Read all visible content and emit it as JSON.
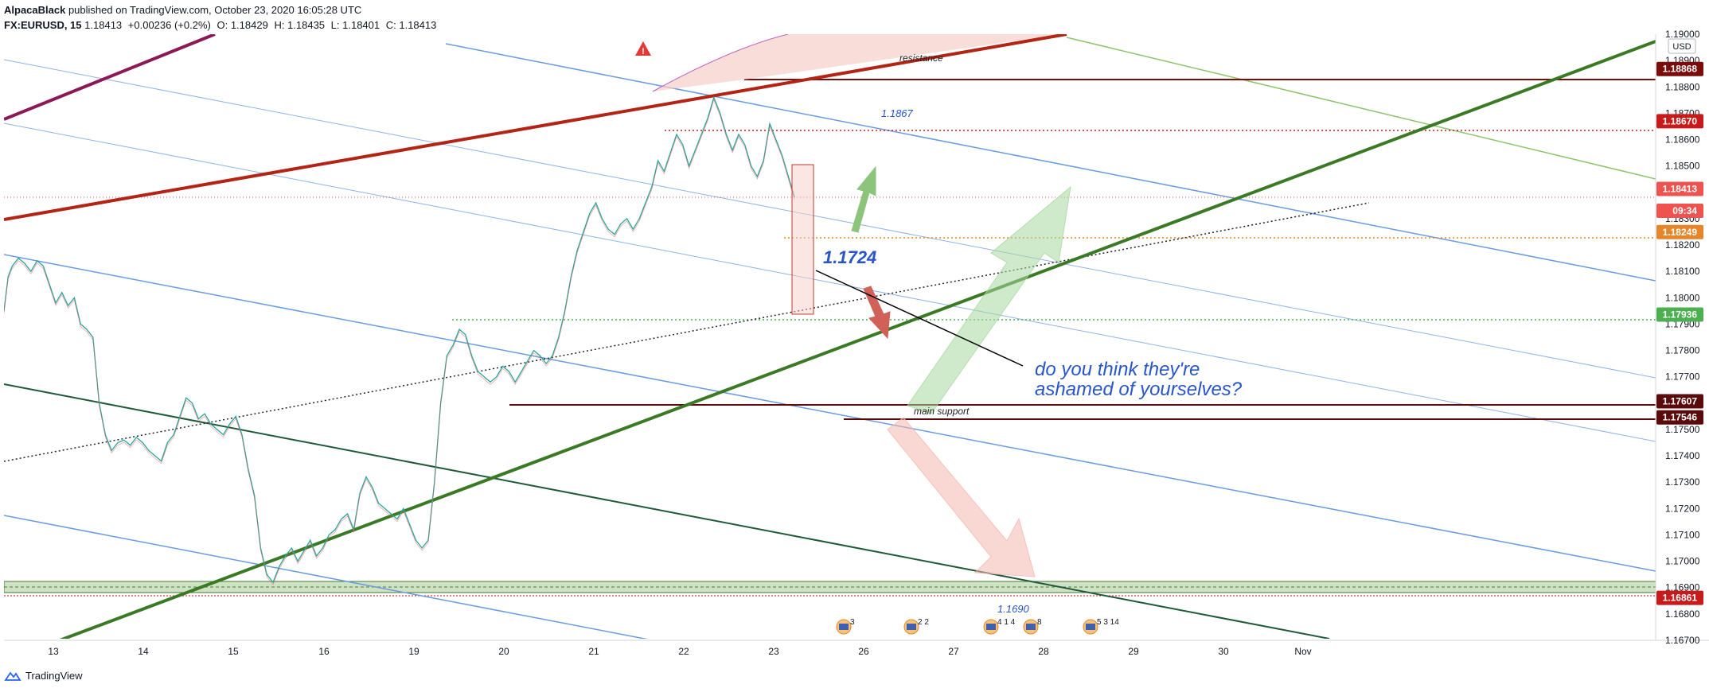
{
  "header": {
    "author": "AlpacaBlack",
    "published": "published on TradingView.com, October 23, 2020 16:05:28 UTC",
    "symbol": "FX:EURUSD, 15",
    "last": "1.18413",
    "change": "+0.00236 (+0.2%)",
    "open": "O: 1.18429",
    "high": "H: 1.18435",
    "low": "L: 1.18401",
    "close": "C: 1.18413"
  },
  "footer": {
    "brand": "TradingView"
  },
  "chart_data": {
    "type": "line",
    "symbol": "FX:EURUSD",
    "timeframe": "15",
    "currency_label": "USD",
    "ylim": [
      1.167,
      1.19
    ],
    "y_ticks": [
      "1.16700",
      "1.16800",
      "1.16900",
      "1.17000",
      "1.17100",
      "1.17200",
      "1.17300",
      "1.17400",
      "1.17500",
      "1.17600",
      "1.17700",
      "1.17800",
      "1.17900",
      "1.18000",
      "1.18100",
      "1.18200",
      "1.18300",
      "1.18400",
      "1.18500",
      "1.18600",
      "1.18700",
      "1.18800",
      "1.18900",
      "1.19000"
    ],
    "x_ticks": [
      "13",
      "14",
      "15",
      "16",
      "19",
      "20",
      "21",
      "22",
      "23",
      "26",
      "27",
      "28",
      "29",
      "30",
      "Nov"
    ],
    "price_tags": [
      {
        "label": "1.18868",
        "value": 1.18868,
        "color": "#7a0c0c"
      },
      {
        "label": "1.18670",
        "value": 1.1867,
        "color": "#c81a1a"
      },
      {
        "label": "1.18413",
        "value": 1.18413,
        "color": "#ef5350"
      },
      {
        "label": "09:34",
        "value": 1.1833,
        "color": "#ef5350"
      },
      {
        "label": "1.18249",
        "value": 1.18249,
        "color": "#e6862a"
      },
      {
        "label": "1.17936",
        "value": 1.17936,
        "color": "#4caf50"
      },
      {
        "label": "1.17607",
        "value": 1.17607,
        "color": "#5a0a0a"
      },
      {
        "label": "1.17546",
        "value": 1.17546,
        "color": "#5a0a0a"
      },
      {
        "label": "1.16861",
        "value": 1.16861,
        "color": "#c81a1a"
      }
    ],
    "annotations": {
      "resistance": "resistance",
      "main_support": "main support",
      "level_1867": "1.1867",
      "level_1724": "1.1724",
      "level_1690": "1.1690",
      "comment_line1": "do you think they're",
      "comment_line2": "ashamed of yourselves?",
      "warning": "!"
    },
    "events": [
      "3",
      "2 2",
      "4 1 4",
      "8",
      "5 3 14"
    ],
    "series": [
      {
        "x": [
          0,
          4,
          8,
          14,
          20,
          26,
          32,
          38,
          44,
          50,
          56,
          62,
          68,
          74,
          80,
          86,
          92,
          98,
          104,
          110,
          116,
          122,
          128,
          134,
          140,
          146,
          152,
          158,
          164,
          170,
          176,
          182,
          188,
          194,
          200,
          206,
          212,
          218,
          224,
          230,
          236,
          242,
          248,
          254,
          260,
          266,
          272,
          278,
          284,
          290,
          296,
          302,
          308,
          314,
          320,
          326,
          332,
          338,
          344,
          350,
          356,
          362,
          368,
          374,
          380,
          386,
          392,
          398,
          404,
          410,
          416,
          422,
          428,
          434,
          440,
          446,
          452,
          458,
          464,
          470,
          476,
          482,
          488,
          494,
          500,
          506,
          512,
          518,
          524,
          530,
          536,
          542,
          548,
          554,
          560,
          566,
          572,
          578,
          584,
          590,
          596,
          602,
          608,
          614,
          620,
          626,
          632,
          638,
          644,
          650,
          656,
          662,
          668,
          674,
          680,
          686,
          692,
          698,
          704,
          710,
          716,
          722,
          728,
          734,
          740,
          746,
          752,
          758,
          764
        ],
        "y": [
          1.1795,
          1.1808,
          1.1812,
          1.1815,
          1.1813,
          1.181,
          1.1814,
          1.1812,
          1.1805,
          1.1798,
          1.1802,
          1.1797,
          1.18,
          1.179,
          1.1788,
          1.1785,
          1.176,
          1.1748,
          1.1742,
          1.1745,
          1.1746,
          1.1744,
          1.1747,
          1.1745,
          1.1742,
          1.174,
          1.1738,
          1.1745,
          1.1748,
          1.1755,
          1.1762,
          1.176,
          1.1754,
          1.1756,
          1.1752,
          1.175,
          1.1748,
          1.1752,
          1.1755,
          1.1748,
          1.1735,
          1.1725,
          1.1705,
          1.1695,
          1.1692,
          1.1698,
          1.1702,
          1.1705,
          1.17,
          1.1704,
          1.1708,
          1.1702,
          1.1705,
          1.171,
          1.1712,
          1.1716,
          1.1718,
          1.1712,
          1.1726,
          1.1732,
          1.1728,
          1.1722,
          1.172,
          1.1718,
          1.1716,
          1.172,
          1.1714,
          1.1708,
          1.1705,
          1.1708,
          1.173,
          1.176,
          1.1778,
          1.1782,
          1.1788,
          1.1786,
          1.1778,
          1.1772,
          1.177,
          1.1768,
          1.177,
          1.1774,
          1.1772,
          1.1768,
          1.1772,
          1.1776,
          1.178,
          1.1778,
          1.1775,
          1.1778,
          1.1785,
          1.1795,
          1.1808,
          1.1818,
          1.1825,
          1.1832,
          1.1836,
          1.183,
          1.1826,
          1.1824,
          1.1828,
          1.183,
          1.1826,
          1.183,
          1.1836,
          1.1842,
          1.1852,
          1.1848,
          1.1855,
          1.1862,
          1.1858,
          1.185,
          1.1856,
          1.1862,
          1.1868,
          1.1876,
          1.187,
          1.1862,
          1.1856,
          1.1862,
          1.1858,
          1.185,
          1.1846,
          1.1852,
          1.1866,
          1.186,
          1.1854,
          1.1846,
          1.1838
        ]
      }
    ]
  }
}
